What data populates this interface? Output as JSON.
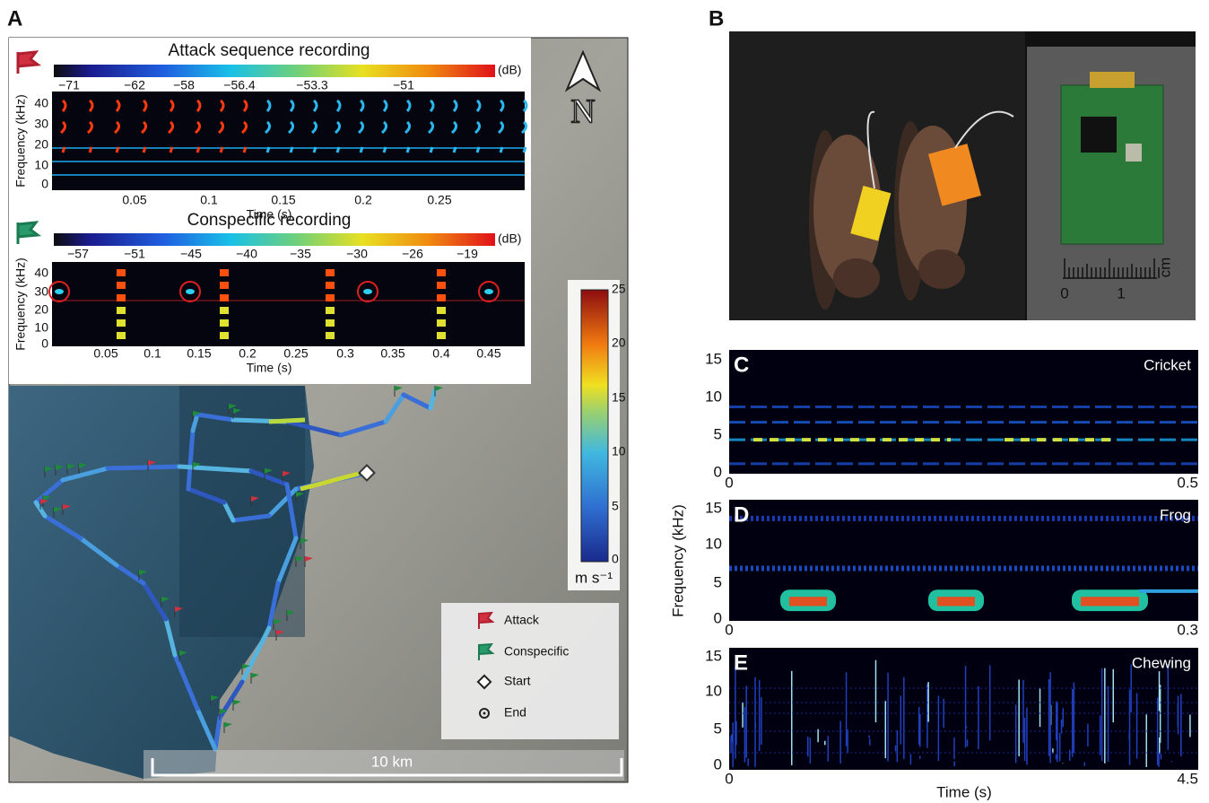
{
  "panel_a": {
    "label": "A",
    "attack_spectrogram": {
      "title": "Attack sequence recording",
      "colorbar_unit": "(dB)",
      "colorbar_ticks": [
        "−71",
        "−62",
        "−58",
        "−56.4",
        "−53.3",
        "−51"
      ],
      "y_axis_label": "Frequency (kHz)",
      "y_ticks": [
        "40",
        "30",
        "20",
        "10",
        "0"
      ],
      "x_ticks": [
        "0.05",
        "0.1",
        "0.15",
        "0.2",
        "0.25"
      ],
      "x_axis_label": "Time (s)"
    },
    "conspecific_spectrogram": {
      "title": "Conspecific recording",
      "colorbar_unit": "(dB)",
      "colorbar_ticks": [
        "−57",
        "−51",
        "−45",
        "−40",
        "−35",
        "−30",
        "−26",
        "−19"
      ],
      "y_axis_label": "Frequency (kHz)",
      "y_ticks": [
        "40",
        "30",
        "20",
        "10",
        "0"
      ],
      "x_ticks": [
        "0.05",
        "0.1",
        "0.15",
        "0.2",
        "0.25",
        "0.3",
        "0.35",
        "0.4",
        "0.45"
      ],
      "x_axis_label": "Time (s)"
    },
    "north_label": "N",
    "speed_colorbar": {
      "ticks": [
        "25",
        "20",
        "15",
        "10",
        "5",
        "0"
      ],
      "unit": "m s⁻¹"
    },
    "legend": [
      "Attack",
      "Conspecific",
      "Start",
      "End"
    ],
    "scale_bar": "10 km"
  },
  "panel_b": {
    "label": "B",
    "ruler_ticks": [
      "0",
      "1"
    ],
    "ruler_unit": "cm"
  },
  "panels_cde": {
    "y_axis_label": "Frequency (kHz)",
    "x_axis_label": "Time (s)",
    "panels": [
      {
        "label": "C",
        "name": "Cricket",
        "y_ticks": [
          "15",
          "10",
          "5",
          "0"
        ],
        "x_start": "0",
        "x_end": "0.5"
      },
      {
        "label": "D",
        "name": "Frog",
        "y_ticks": [
          "15",
          "10",
          "5",
          "0"
        ],
        "x_start": "0",
        "x_end": "0.3"
      },
      {
        "label": "E",
        "name": "Chewing",
        "y_ticks": [
          "15",
          "10",
          "5",
          "0"
        ],
        "x_start": "0",
        "x_end": "4.5"
      }
    ]
  }
}
